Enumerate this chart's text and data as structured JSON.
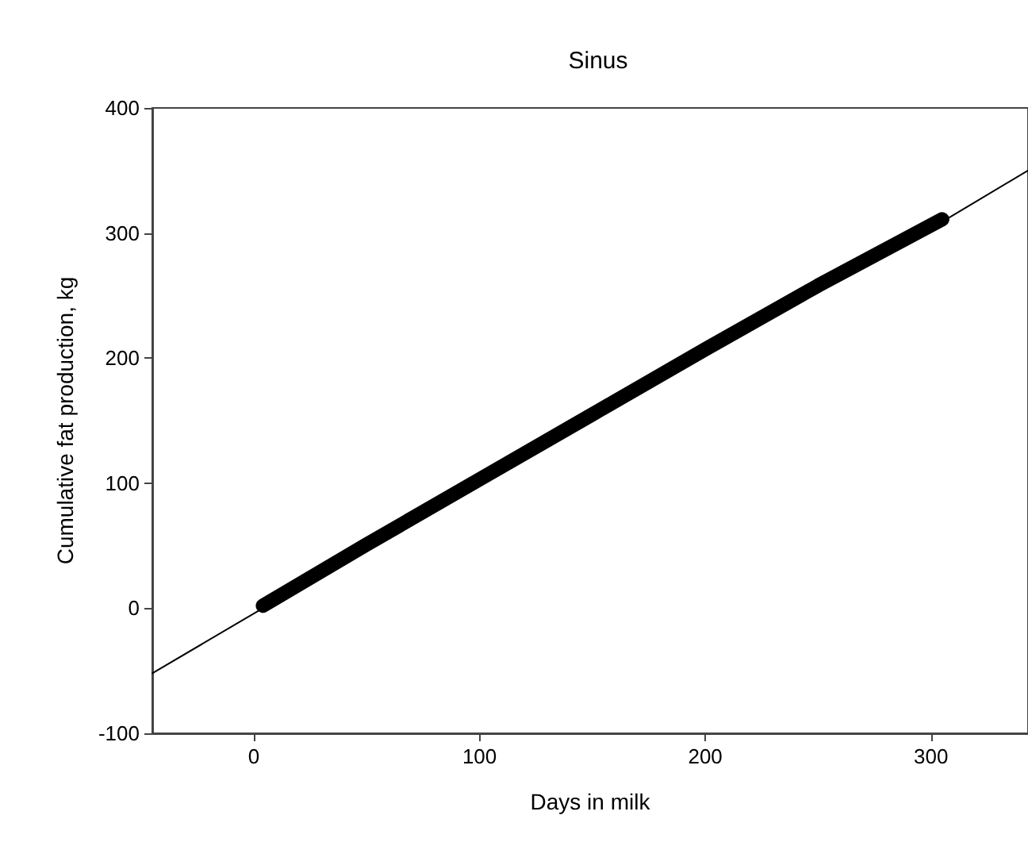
{
  "chart_data": {
    "type": "line",
    "title": "Sinus",
    "xlabel": "Days in milk",
    "ylabel": "Cumulative fat production, kg",
    "xlim": [
      -45,
      343
    ],
    "xticks": [
      0,
      100,
      200,
      300
    ],
    "ylim": [
      -100,
      400
    ],
    "yticks": [
      -100,
      0,
      100,
      200,
      300,
      400
    ],
    "grid": false,
    "marker": "none",
    "line_style": "solid",
    "series": [
      {
        "color": "#000000",
        "x": [
          -45,
          4,
          100,
          200,
          305,
          343
        ],
        "values": [
          -52,
          0,
          101,
          205,
          309,
          350
        ]
      },
      {
        "color": "#000000",
        "x": [
          4,
          50,
          100,
          150,
          200,
          250,
          305
        ],
        "values": [
          2,
          51,
          103,
          155,
          207,
          258,
          311
        ]
      }
    ]
  }
}
